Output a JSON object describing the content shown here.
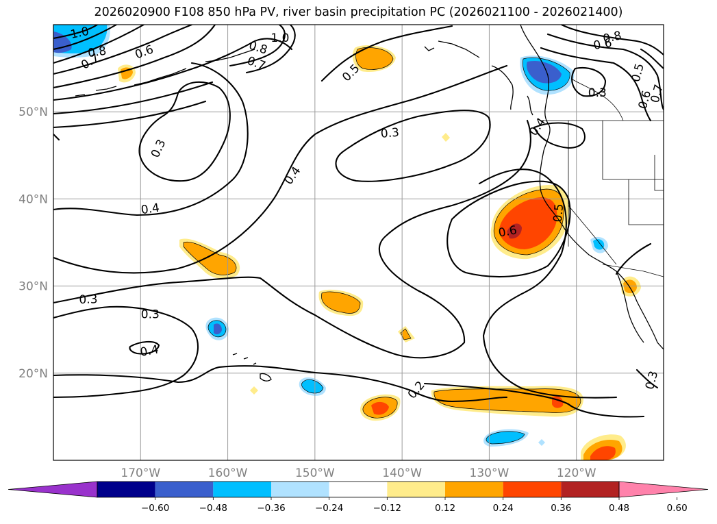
{
  "chart_data": {
    "type": "contour-map",
    "title": "2026020900 F108 850 hPa PV, river basin precipitation PC (2026021100 - 2026021400)",
    "lon_range": [
      -180,
      -110
    ],
    "lat_range": [
      10,
      60
    ],
    "lon_ticks": [
      {
        "value": -170,
        "label": "170°W"
      },
      {
        "value": -160,
        "label": "160°W"
      },
      {
        "value": -150,
        "label": "150°W"
      },
      {
        "value": -140,
        "label": "140°W"
      },
      {
        "value": -130,
        "label": "130°W"
      },
      {
        "value": -120,
        "label": "120°W"
      }
    ],
    "lat_ticks": [
      {
        "value": 50,
        "label": "50°N"
      },
      {
        "value": 40,
        "label": "40°N"
      },
      {
        "value": 30,
        "label": "30°N"
      },
      {
        "value": 20,
        "label": "20°N"
      }
    ],
    "contour_labels": [
      {
        "text": "1.0",
        "lon": -177,
        "lat": 59.1,
        "rot": -12
      },
      {
        "text": "0.8",
        "lon": -175,
        "lat": 56.9,
        "rot": -8
      },
      {
        "text": "0.7",
        "lon": -175.8,
        "lat": 55.8,
        "rot": -30
      },
      {
        "text": "0.6",
        "lon": -169.6,
        "lat": 56.9,
        "rot": -20
      },
      {
        "text": "0.8",
        "lon": -156.5,
        "lat": 57.4,
        "rot": 18
      },
      {
        "text": "0.7",
        "lon": -156.7,
        "lat": 55.6,
        "rot": 20
      },
      {
        "text": "1.0",
        "lon": -154,
        "lat": 58.5,
        "rot": 0
      },
      {
        "text": "0.5",
        "lon": -145.9,
        "lat": 54.5,
        "rot": -45
      },
      {
        "text": "0.3",
        "lon": -168,
        "lat": 45.8,
        "rot": -65
      },
      {
        "text": "0.4",
        "lon": -152.6,
        "lat": 42.7,
        "rot": -55
      },
      {
        "text": "0.3",
        "lon": -141.4,
        "lat": 47.6,
        "rot": -5
      },
      {
        "text": "0.4",
        "lon": -168.9,
        "lat": 38.9,
        "rot": -8
      },
      {
        "text": "0.3",
        "lon": -176,
        "lat": 28.5,
        "rot": -2
      },
      {
        "text": "0.3",
        "lon": -168.9,
        "lat": 26.8,
        "rot": 0
      },
      {
        "text": "0.4",
        "lon": -169,
        "lat": 22.6,
        "rot": -10
      },
      {
        "text": "0.4",
        "lon": -124.5,
        "lat": 48.3,
        "rot": -55
      },
      {
        "text": "0.6",
        "lon": -127.9,
        "lat": 36.3,
        "rot": -10
      },
      {
        "text": "0.5",
        "lon": -122.1,
        "lat": 38.4,
        "rot": -85
      },
      {
        "text": "0.8",
        "lon": -115.9,
        "lat": 58.6,
        "rot": -12
      },
      {
        "text": "0.6",
        "lon": -117,
        "lat": 57.8,
        "rot": -10
      },
      {
        "text": "0.3",
        "lon": -117.6,
        "lat": 52.2,
        "rot": 0
      },
      {
        "text": "0.5",
        "lon": -113,
        "lat": 54.5,
        "rot": -75
      },
      {
        "text": "0.6",
        "lon": -112.2,
        "lat": 51.4,
        "rot": -75
      },
      {
        "text": "0.7",
        "lon": -110.8,
        "lat": 52.1,
        "rot": -75
      },
      {
        "text": "0.2",
        "lon": -138.4,
        "lat": 18.1,
        "rot": -50
      },
      {
        "text": "0.3",
        "lon": -111.4,
        "lat": 19.2,
        "rot": -75
      }
    ],
    "colorbar": {
      "colors": [
        "#9932cc",
        "#00008b",
        "#3a5fcd",
        "#00bfff",
        "#b0e2ff",
        "#ffffff",
        "#ffec8b",
        "#ffa500",
        "#ff4500",
        "#b22222",
        "#ff82ab"
      ],
      "ticks": [
        "−0.60",
        "−0.48",
        "−0.36",
        "−0.24",
        "−0.12",
        "0.12",
        "0.24",
        "0.36",
        "0.48",
        "0.60"
      ],
      "extend": "both"
    }
  }
}
